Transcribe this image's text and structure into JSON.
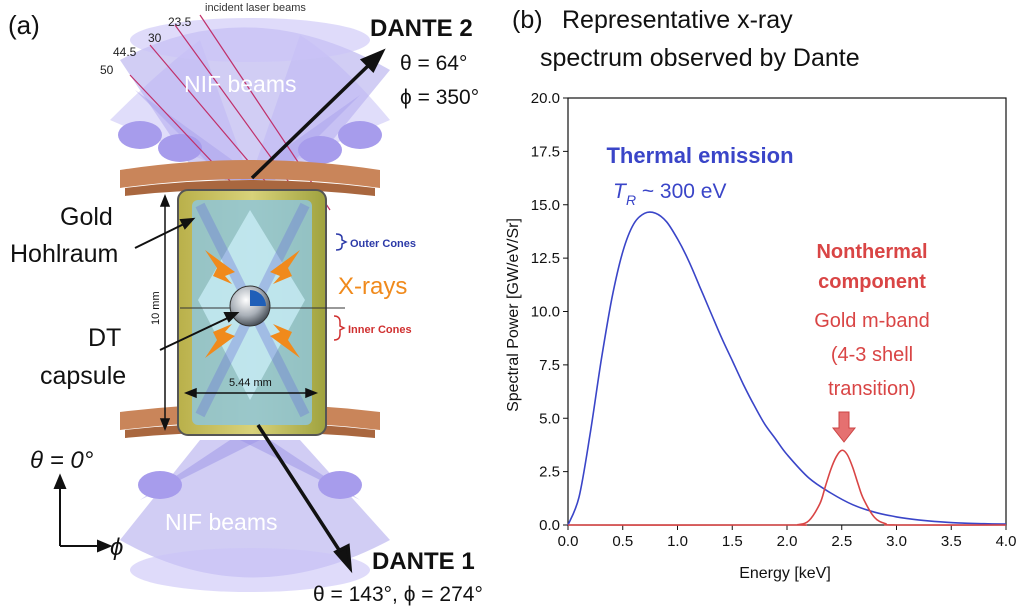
{
  "left": {
    "panel_label": "(a)",
    "incident_label": "incident laser beams",
    "angles": [
      "23.5",
      "30",
      "44.5",
      "50"
    ],
    "nif_top": "NIF beams",
    "nif_bottom": "NIF beams",
    "dante2": {
      "name": "DANTE 2",
      "theta": "θ = 64°",
      "phi": "ϕ = 350°"
    },
    "dante1": {
      "name": "DANTE 1",
      "angles": "θ = 143°, ϕ = 274°"
    },
    "gold_label": "Gold",
    "hohlraum_label": "Hohlraum",
    "dt_label": "DT",
    "capsule_label": "capsule",
    "outer_cones": "Outer Cones",
    "inner_cones": "Inner Cones",
    "xrays": "X-rays",
    "height_dim": "10 mm",
    "width_dim": "5.44 mm",
    "theta_zero": "θ = 0°",
    "phi_axis": "ϕ",
    "colors": {
      "beam": "#8f86e6",
      "gold": "#c9b64a",
      "xray": "#f08a1c",
      "copper": "#c9855a",
      "outer": "#2c3aa8",
      "inner": "#d03030"
    }
  },
  "right": {
    "panel_label": "(b)",
    "title_line1": "Representative x-ray",
    "title_line2": "spectrum observed by Dante",
    "thermal_title": "Thermal emission",
    "thermal_sub": "T",
    "thermal_sub_index": "R",
    "thermal_sub_rest": " ~ 300 eV",
    "nonthermal_title1": "Nonthermal",
    "nonthermal_title2": "component",
    "nonthermal_sub1": "Gold m-band",
    "nonthermal_sub2": "(4-3 shell",
    "nonthermal_sub3": "transition)",
    "colors": {
      "thermal": "#3a45c8",
      "nonthermal": "#d94545"
    }
  },
  "chart_data": {
    "type": "line",
    "xlabel": "Energy [keV]",
    "ylabel": "Spectral Power [GW/eV/Sr]",
    "xlim": [
      0,
      4.0
    ],
    "ylim": [
      0,
      20.0
    ],
    "xticks": [
      "0.0",
      "0.5",
      "1.0",
      "1.5",
      "2.0",
      "2.5",
      "3.0",
      "3.5",
      "4.0"
    ],
    "yticks": [
      "0.0",
      "2.5",
      "5.0",
      "7.5",
      "10.0",
      "12.5",
      "15.0",
      "17.5",
      "20.0"
    ],
    "series": [
      {
        "color": "#3a45c8",
        "x": [
          0.0,
          0.1,
          0.2,
          0.3,
          0.4,
          0.5,
          0.6,
          0.7,
          0.8,
          0.9,
          1.0,
          1.1,
          1.2,
          1.3,
          1.4,
          1.5,
          1.6,
          1.7,
          1.8,
          1.9,
          2.0,
          2.2,
          2.4,
          2.6,
          2.8,
          3.0,
          3.2,
          3.4,
          3.6,
          3.8,
          4.0
        ],
        "y": [
          0.0,
          1.3,
          4.2,
          7.6,
          10.6,
          12.8,
          14.1,
          14.6,
          14.6,
          14.2,
          13.4,
          12.4,
          11.2,
          10.0,
          8.8,
          7.7,
          6.6,
          5.6,
          4.7,
          4.0,
          3.3,
          2.2,
          1.5,
          0.95,
          0.6,
          0.38,
          0.24,
          0.15,
          0.09,
          0.06,
          0.04
        ]
      },
      {
        "color": "#d94545",
        "x": [
          0.0,
          2.0,
          2.1,
          2.2,
          2.3,
          2.35,
          2.4,
          2.45,
          2.5,
          2.55,
          2.6,
          2.65,
          2.7,
          2.8,
          2.9,
          3.0,
          4.0
        ],
        "y": [
          0.0,
          0.0,
          0.02,
          0.2,
          1.0,
          1.8,
          2.6,
          3.2,
          3.5,
          3.3,
          2.7,
          1.9,
          1.2,
          0.35,
          0.06,
          0.0,
          0.0
        ]
      }
    ]
  }
}
